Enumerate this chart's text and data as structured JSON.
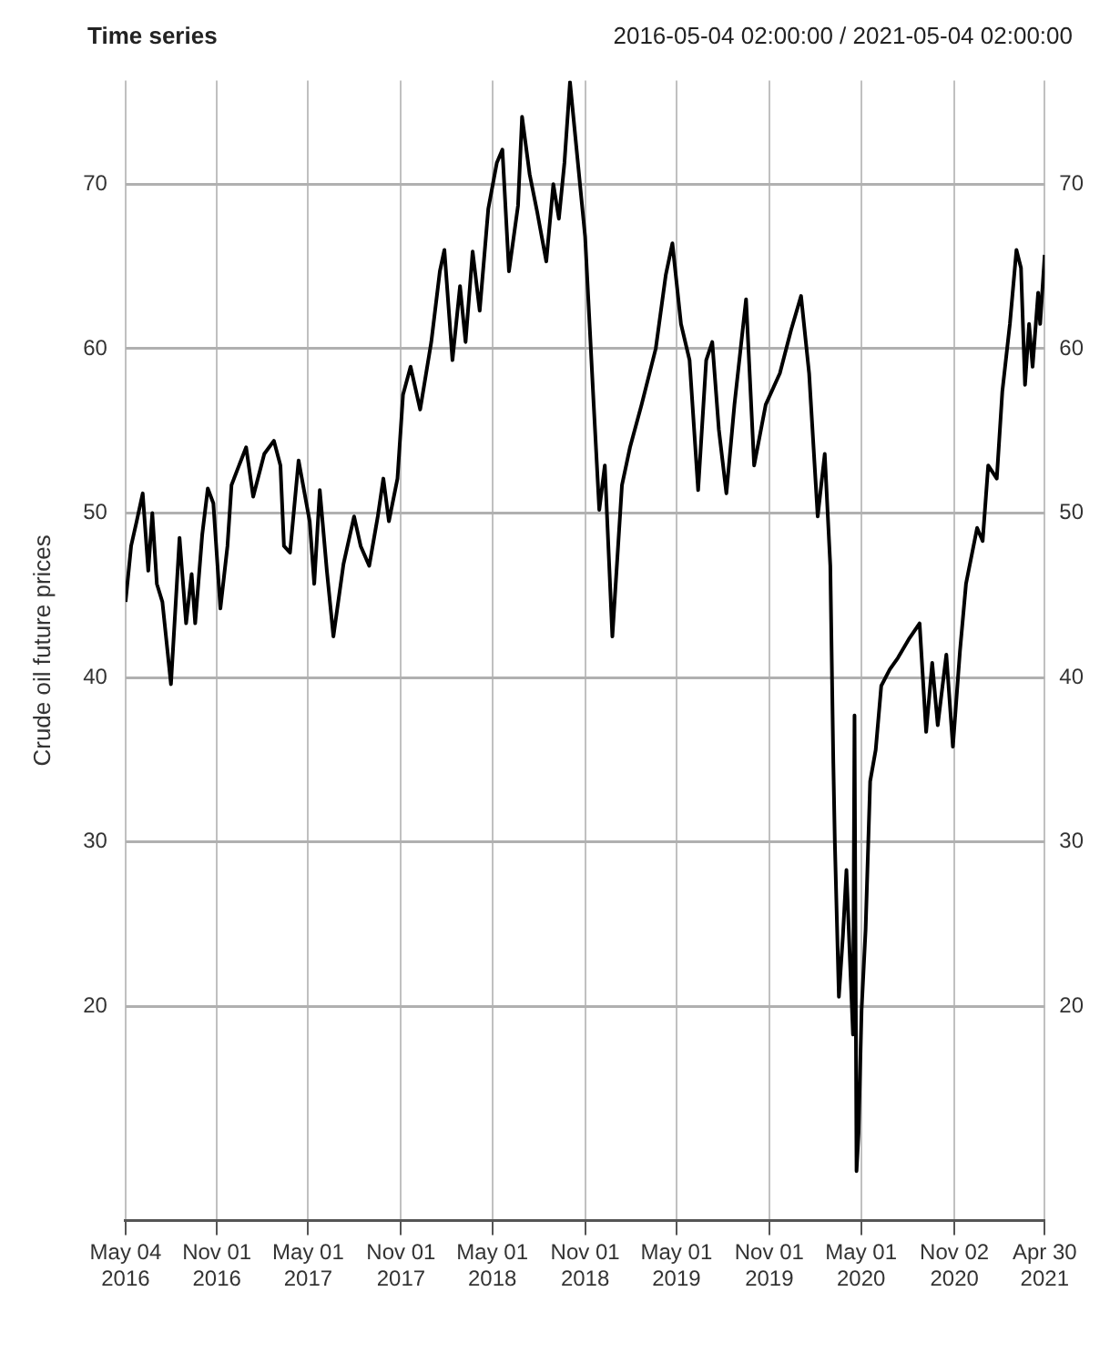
{
  "chart_data": {
    "type": "line",
    "title": "Time series",
    "subtitle": "2016-05-04 02:00:00 / 2021-05-04 02:00:00",
    "ylabel": "Crude oil future prices",
    "x": [
      "2016-05-04",
      "2016-05-15",
      "2016-05-26",
      "2016-06-07",
      "2016-06-18",
      "2016-06-26",
      "2016-07-05",
      "2016-07-16",
      "2016-08-02",
      "2016-08-19",
      "2016-09-01",
      "2016-09-12",
      "2016-09-19",
      "2016-10-03",
      "2016-10-14",
      "2016-10-25",
      "2016-11-08",
      "2016-11-22",
      "2016-11-30",
      "2016-12-15",
      "2016-12-29",
      "2017-01-12",
      "2017-02-03",
      "2017-02-22",
      "2017-03-07",
      "2017-03-14",
      "2017-03-26",
      "2017-04-12",
      "2017-05-04",
      "2017-05-13",
      "2017-05-24",
      "2017-06-07",
      "2017-06-20",
      "2017-07-10",
      "2017-07-31",
      "2017-08-13",
      "2017-08-30",
      "2017-09-16",
      "2017-09-27",
      "2017-10-08",
      "2017-10-25",
      "2017-11-05",
      "2017-11-20",
      "2017-12-09",
      "2017-12-31",
      "2018-01-17",
      "2018-01-26",
      "2018-02-11",
      "2018-02-26",
      "2018-03-09",
      "2018-03-23",
      "2018-04-06",
      "2018-04-23",
      "2018-05-10",
      "2018-05-21",
      "2018-06-03",
      "2018-06-21",
      "2018-06-29",
      "2018-07-14",
      "2018-07-29",
      "2018-08-16",
      "2018-08-30",
      "2018-09-10",
      "2018-09-21",
      "2018-10-02",
      "2018-11-01",
      "2018-11-18",
      "2018-11-29",
      "2018-12-10",
      "2018-12-25",
      "2019-01-13",
      "2019-01-29",
      "2019-02-21",
      "2019-03-21",
      "2019-04-10",
      "2019-04-23",
      "2019-05-10",
      "2019-05-27",
      "2019-06-13",
      "2019-06-29",
      "2019-07-11",
      "2019-07-24",
      "2019-08-08",
      "2019-08-24",
      "2019-09-16",
      "2019-10-02",
      "2019-10-25",
      "2019-11-22",
      "2019-12-14",
      "2020-01-03",
      "2020-01-19",
      "2020-02-05",
      "2020-02-19",
      "2020-03-01",
      "2020-03-07",
      "2020-03-10",
      "2020-03-18",
      "2020-03-26",
      "2020-04-02",
      "2020-04-09",
      "2020-04-15",
      "2020-04-18",
      "2020-04-22",
      "2020-04-26",
      "2020-05-02",
      "2020-05-10",
      "2020-05-19",
      "2020-05-30",
      "2020-06-10",
      "2020-06-27",
      "2020-07-13",
      "2020-08-05",
      "2020-08-25",
      "2020-09-07",
      "2020-09-19",
      "2020-09-30",
      "2020-10-17",
      "2020-10-30",
      "2020-11-13",
      "2020-11-25",
      "2020-12-17",
      "2020-12-28",
      "2021-01-08",
      "2021-01-25",
      "2021-02-05",
      "2021-02-20",
      "2021-03-05",
      "2021-03-14",
      "2021-03-22",
      "2021-03-30",
      "2021-04-06",
      "2021-04-17",
      "2021-04-21",
      "2021-04-30"
    ],
    "series": [
      {
        "color": "#000000",
        "values": [
          44.6,
          48,
          49.5,
          51.2,
          46.5,
          50,
          45.7,
          44.6,
          39.6,
          48.5,
          43.3,
          46.3,
          43.3,
          48.7,
          51.5,
          50.6,
          44.2,
          48,
          51.7,
          52.9,
          54,
          51,
          53.6,
          54.4,
          52.9,
          48,
          47.6,
          53.2,
          49.5,
          45.7,
          51.4,
          46.5,
          42.5,
          46.9,
          49.8,
          48,
          46.8,
          49.8,
          52.1,
          49.5,
          52.1,
          57.2,
          58.9,
          56.3,
          60.4,
          64.7,
          66,
          59.3,
          63.8,
          60.4,
          65.9,
          62.3,
          68.5,
          71.3,
          72.1,
          64.7,
          68.7,
          74.1,
          70.6,
          68.3,
          65.3,
          70,
          67.9,
          71.3,
          76.2,
          66.8,
          56.6,
          50.2,
          52.9,
          42.5,
          51.7,
          54,
          56.6,
          60,
          64.5,
          66.4,
          61.5,
          59.3,
          51.4,
          59.3,
          60.4,
          55.1,
          51.2,
          56.6,
          63,
          52.9,
          56.6,
          58.5,
          61.1,
          63.2,
          58.5,
          49.8,
          53.6,
          46.8,
          34.8,
          30,
          20.6,
          24.3,
          28.3,
          22.8,
          18.3,
          37.7,
          10,
          12.3,
          19.8,
          24.7,
          33.7,
          35.6,
          39.5,
          40.5,
          41.2,
          42.4,
          43.3,
          36.7,
          40.9,
          37.1,
          41.4,
          35.8,
          41.6,
          45.7,
          49.1,
          48.3,
          52.9,
          52.1,
          57.4,
          61.5,
          66,
          64.9,
          57.8,
          61.5,
          58.9,
          63.4,
          61.5,
          65.7
        ]
      }
    ],
    "xlim": [
      "2016-05-04",
      "2021-04-30"
    ],
    "xticks": [
      {
        "value": "2016-05-04",
        "label": "May 04\n2016"
      },
      {
        "value": "2016-11-01",
        "label": "Nov 01\n2016"
      },
      {
        "value": "2017-05-01",
        "label": "May 01\n2017"
      },
      {
        "value": "2017-11-01",
        "label": "Nov 01\n2017"
      },
      {
        "value": "2018-05-01",
        "label": "May 01\n2018"
      },
      {
        "value": "2018-11-01",
        "label": "Nov 01\n2018"
      },
      {
        "value": "2019-05-01",
        "label": "May 01\n2019"
      },
      {
        "value": "2019-11-01",
        "label": "Nov 01\n2019"
      },
      {
        "value": "2020-05-01",
        "label": "May 01\n2020"
      },
      {
        "value": "2020-11-02",
        "label": "Nov 02\n2020"
      },
      {
        "value": "2021-04-30",
        "label": "Apr 30\n2021"
      }
    ],
    "ylim": [
      7,
      76.3
    ],
    "yticks": [
      20,
      30,
      40,
      50,
      60,
      70
    ],
    "y2lim": [
      7,
      76.3
    ],
    "y2ticks": [
      20,
      30,
      40,
      50,
      60,
      70
    ],
    "grid": true,
    "legend": false,
    "marker": "none",
    "line_style": "solid"
  }
}
